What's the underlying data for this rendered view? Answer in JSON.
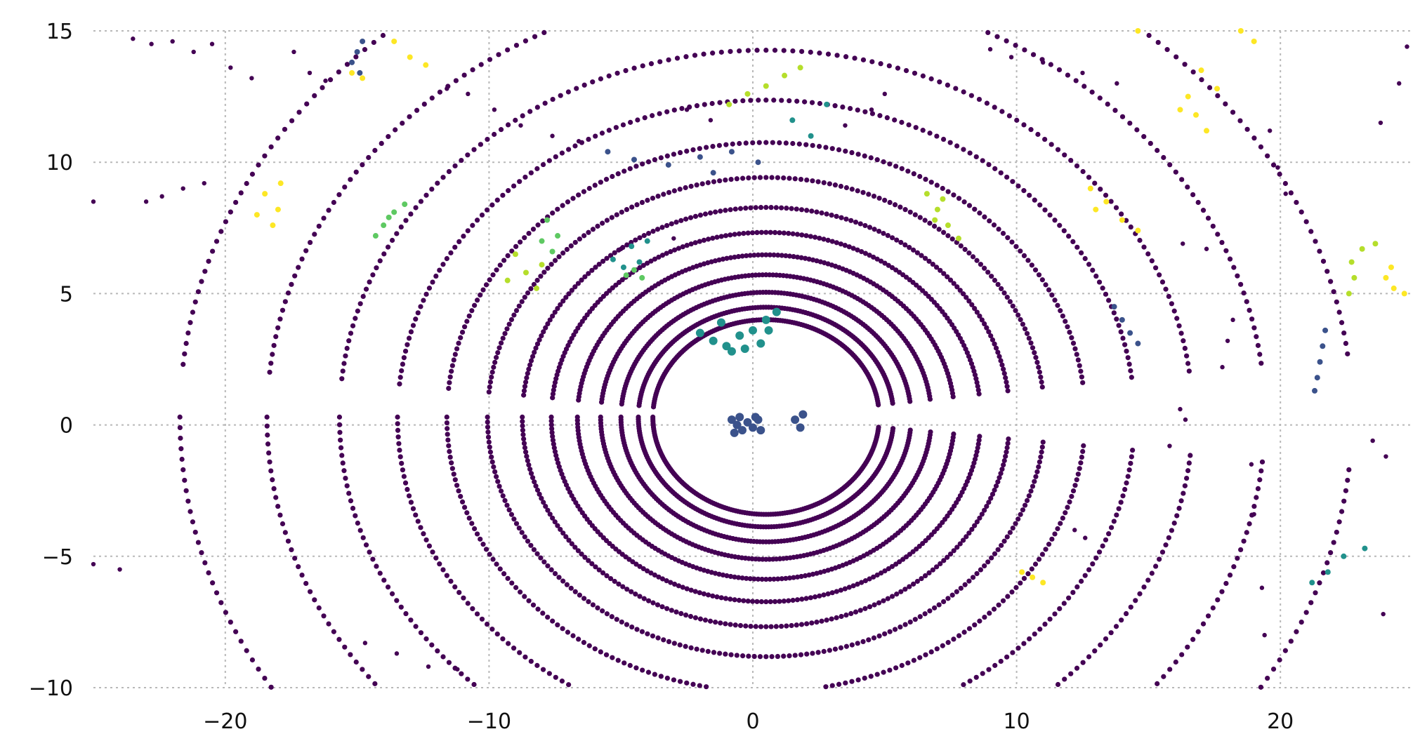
{
  "chart_data": {
    "type": "scatter",
    "title": "",
    "xlabel": "",
    "ylabel": "",
    "xlim": [
      -25,
      25
    ],
    "ylim": [
      -10,
      15
    ],
    "grid": true,
    "legend": "none",
    "colormap": "viridis",
    "x_ticks": [
      "−20",
      "−10",
      "0",
      "10",
      "20"
    ],
    "x_tick_values": [
      -20,
      -10,
      0,
      10,
      20
    ],
    "y_ticks": [
      "15",
      "10",
      "5",
      "0",
      "−5",
      "−10"
    ],
    "y_tick_values": [
      15,
      10,
      5,
      0,
      -5,
      -10
    ],
    "colors": {
      "ring": "#440154",
      "dark_blue": "#3b528b",
      "teal": "#21918c",
      "green": "#5ec962",
      "yellow_green": "#b5de2b",
      "yellow": "#fde725",
      "grid": "#b8b8b8"
    },
    "ring_center": [
      0.5,
      0.3
    ],
    "ring_radii": [
      3.9,
      4.4,
      5.0,
      5.7,
      6.5,
      7.4,
      8.4,
      9.6,
      11.0,
      12.7,
      14.7,
      17.2,
      20.2
    ],
    "ring_gaps_deg": [
      [
        -6,
        6
      ],
      [
        174,
        186
      ]
    ],
    "ego_points": [
      [
        -0.8,
        0.2
      ],
      [
        -0.6,
        0.0
      ],
      [
        -0.4,
        -0.2
      ],
      [
        -0.2,
        0.1
      ],
      [
        0.0,
        -0.1
      ],
      [
        0.2,
        0.2
      ],
      [
        -0.7,
        -0.3
      ],
      [
        0.3,
        -0.2
      ],
      [
        -0.5,
        0.3
      ],
      [
        0.1,
        0.3
      ],
      [
        1.6,
        0.2
      ],
      [
        1.8,
        -0.1
      ],
      [
        1.9,
        0.4
      ]
    ],
    "near_cluster_points": [
      [
        -1.5,
        3.2
      ],
      [
        -1.0,
        3.0
      ],
      [
        -0.5,
        3.4
      ],
      [
        0.0,
        3.6
      ],
      [
        0.5,
        4.0
      ],
      [
        0.9,
        4.3
      ],
      [
        -2.0,
        3.5
      ],
      [
        -0.8,
        2.8
      ],
      [
        0.3,
        3.1
      ],
      [
        -1.2,
        3.9
      ],
      [
        0.6,
        3.6
      ],
      [
        -0.3,
        2.9
      ]
    ],
    "colored_clusters": [
      {
        "color": "yellow",
        "points": [
          [
            -18.5,
            8.8
          ],
          [
            -18.0,
            8.2
          ],
          [
            -18.8,
            8.0
          ],
          [
            -18.2,
            7.6
          ],
          [
            -17.9,
            9.2
          ]
        ]
      },
      {
        "color": "green",
        "points": [
          [
            -14.0,
            7.6
          ],
          [
            -13.6,
            8.1
          ],
          [
            -13.2,
            8.4
          ],
          [
            -14.3,
            7.2
          ],
          [
            -13.8,
            7.9
          ]
        ]
      },
      {
        "color": "yellow_green",
        "points": [
          [
            -9.0,
            6.5
          ],
          [
            -8.6,
            5.8
          ],
          [
            -8.2,
            5.2
          ],
          [
            -9.3,
            5.5
          ],
          [
            -8.0,
            6.1
          ]
        ]
      },
      {
        "color": "green",
        "points": [
          [
            -7.8,
            7.8
          ],
          [
            -7.4,
            7.2
          ],
          [
            -8.0,
            7.0
          ],
          [
            -7.6,
            6.6
          ]
        ]
      },
      {
        "color": "teal",
        "points": [
          [
            -5.3,
            6.3
          ],
          [
            -4.9,
            6.0
          ],
          [
            -4.6,
            6.8
          ],
          [
            -4.3,
            6.2
          ],
          [
            -4.0,
            7.0
          ]
        ]
      },
      {
        "color": "green",
        "points": [
          [
            -4.8,
            5.7
          ],
          [
            -4.5,
            5.9
          ],
          [
            -4.2,
            5.6
          ]
        ]
      },
      {
        "color": "dark_blue",
        "points": [
          [
            -5.5,
            10.4
          ],
          [
            -4.5,
            10.1
          ],
          [
            -3.2,
            9.9
          ],
          [
            -2.0,
            10.2
          ],
          [
            -0.8,
            10.4
          ],
          [
            0.2,
            10.0
          ],
          [
            -1.5,
            9.6
          ]
        ]
      },
      {
        "color": "yellow_green",
        "points": [
          [
            -0.9,
            12.2
          ],
          [
            -0.2,
            12.6
          ],
          [
            0.5,
            12.9
          ],
          [
            1.2,
            13.3
          ],
          [
            1.8,
            13.6
          ]
        ]
      },
      {
        "color": "teal",
        "points": [
          [
            1.5,
            11.6
          ],
          [
            2.2,
            11.0
          ],
          [
            2.8,
            12.2
          ]
        ]
      },
      {
        "color": "yellow_green",
        "points": [
          [
            6.6,
            8.8
          ],
          [
            7.0,
            8.2
          ],
          [
            7.4,
            7.6
          ],
          [
            7.8,
            7.1
          ],
          [
            7.2,
            8.6
          ],
          [
            6.9,
            7.8
          ]
        ]
      },
      {
        "color": "yellow",
        "points": [
          [
            16.5,
            12.5
          ],
          [
            16.8,
            11.8
          ],
          [
            17.2,
            11.2
          ],
          [
            16.2,
            12.0
          ],
          [
            17.6,
            12.8
          ],
          [
            17.0,
            13.5
          ]
        ]
      },
      {
        "color": "yellow",
        "points": [
          [
            12.8,
            9.0
          ],
          [
            13.4,
            8.5
          ],
          [
            14.0,
            7.8
          ],
          [
            14.6,
            7.4
          ],
          [
            13.0,
            8.2
          ]
        ]
      },
      {
        "color": "yellow_green",
        "points": [
          [
            22.8,
            5.6
          ],
          [
            22.6,
            5.0
          ],
          [
            22.7,
            6.2
          ],
          [
            23.1,
            6.7
          ],
          [
            23.6,
            6.9
          ]
        ]
      },
      {
        "color": "yellow",
        "points": [
          [
            24.0,
            5.6
          ],
          [
            24.3,
            5.2
          ],
          [
            24.7,
            5.0
          ],
          [
            24.2,
            6.0
          ]
        ]
      },
      {
        "color": "dark_blue",
        "points": [
          [
            21.3,
            1.3
          ],
          [
            21.4,
            1.8
          ],
          [
            21.5,
            2.4
          ],
          [
            21.6,
            3.0
          ],
          [
            21.7,
            3.6
          ]
        ]
      },
      {
        "color": "dark_blue",
        "points": [
          [
            13.7,
            4.5
          ],
          [
            14.0,
            4.0
          ],
          [
            14.3,
            3.5
          ],
          [
            14.6,
            3.1
          ]
        ]
      },
      {
        "color": "teal",
        "points": [
          [
            21.2,
            -6.0
          ],
          [
            21.8,
            -5.6
          ],
          [
            22.4,
            -5.0
          ],
          [
            23.2,
            -4.7
          ]
        ]
      },
      {
        "color": "yellow",
        "points": [
          [
            10.2,
            -5.6
          ],
          [
            10.6,
            -5.8
          ],
          [
            11.0,
            -6.0
          ]
        ]
      },
      {
        "color": "yellow",
        "points": [
          [
            -13.6,
            14.6
          ],
          [
            -13.0,
            14.0
          ],
          [
            -12.4,
            13.7
          ],
          [
            -15.2,
            13.4
          ],
          [
            -14.8,
            13.2
          ]
        ]
      },
      {
        "color": "yellow",
        "points": [
          [
            14.6,
            15.0
          ],
          [
            19.0,
            14.6
          ],
          [
            18.5,
            15.0
          ]
        ]
      },
      {
        "color": "dark_blue",
        "points": [
          [
            -15.0,
            14.2
          ],
          [
            -14.8,
            14.6
          ],
          [
            -15.2,
            13.8
          ],
          [
            -14.9,
            13.4
          ]
        ]
      }
    ],
    "sparse_background_points": [
      [
        -23.5,
        14.7
      ],
      [
        -22.8,
        14.5
      ],
      [
        -22.0,
        14.6
      ],
      [
        -21.2,
        14.2
      ],
      [
        -20.5,
        14.5
      ],
      [
        -19.8,
        13.6
      ],
      [
        -19.0,
        13.2
      ],
      [
        -17.4,
        14.2
      ],
      [
        -16.8,
        13.4
      ],
      [
        -16.2,
        13.1
      ],
      [
        -23.0,
        8.5
      ],
      [
        -22.4,
        8.7
      ],
      [
        -21.6,
        9.0
      ],
      [
        -20.8,
        9.2
      ],
      [
        -25.0,
        8.5
      ],
      [
        -9.8,
        12.0
      ],
      [
        -10.8,
        12.6
      ],
      [
        -11.6,
        12.8
      ],
      [
        -8.8,
        11.4
      ],
      [
        -7.6,
        11.0
      ],
      [
        -6.6,
        10.8
      ],
      [
        -2.5,
        12.0
      ],
      [
        -1.6,
        11.6
      ],
      [
        3.5,
        11.4
      ],
      [
        4.5,
        12.0
      ],
      [
        5.0,
        12.6
      ],
      [
        9.0,
        14.3
      ],
      [
        9.8,
        14.0
      ],
      [
        11.0,
        13.8
      ],
      [
        12.5,
        13.4
      ],
      [
        13.8,
        13.0
      ],
      [
        19.6,
        11.2
      ],
      [
        19.9,
        9.8
      ],
      [
        20.2,
        8.8
      ],
      [
        16.3,
        6.9
      ],
      [
        17.2,
        6.7
      ],
      [
        18.2,
        4.0
      ],
      [
        18.0,
        3.2
      ],
      [
        17.8,
        2.2
      ],
      [
        16.2,
        0.6
      ],
      [
        16.4,
        0.2
      ],
      [
        15.8,
        -0.8
      ],
      [
        18.9,
        -1.5
      ],
      [
        19.0,
        -3.4
      ],
      [
        19.3,
        -6.2
      ],
      [
        19.4,
        -8.0
      ],
      [
        23.8,
        11.5
      ],
      [
        24.5,
        13.0
      ],
      [
        24.8,
        14.4
      ],
      [
        23.5,
        -0.6
      ],
      [
        24.0,
        -1.2
      ],
      [
        23.9,
        -7.2
      ],
      [
        12.2,
        -4.0
      ],
      [
        12.6,
        -4.3
      ],
      [
        -5.0,
        6.7
      ],
      [
        -3.0,
        7.1
      ],
      [
        -14.7,
        -8.3
      ],
      [
        -13.5,
        -8.7
      ],
      [
        -12.3,
        -9.2
      ],
      [
        -11.2,
        -9.3
      ],
      [
        -25.0,
        -5.3
      ],
      [
        -24.0,
        -5.5
      ]
    ]
  }
}
